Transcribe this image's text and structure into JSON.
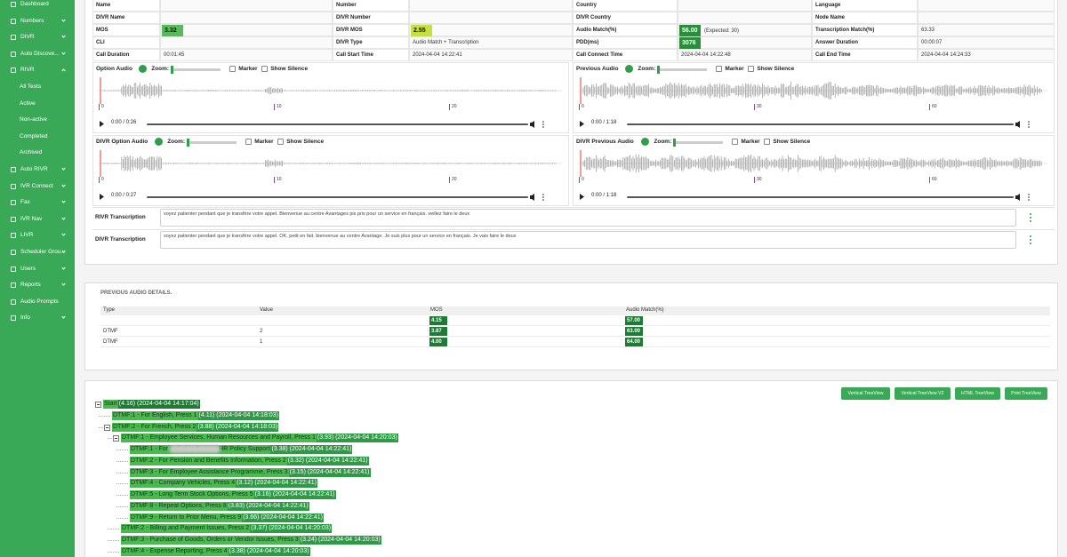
{
  "sidebar": {
    "items": [
      "Dashboard",
      "Numbers",
      "DIVR",
      "Auto Discove...",
      "RIVR",
      "All Tests",
      "Active",
      "Non-active",
      "Completed",
      "Archived",
      "Auto RIVR",
      "IVR Connect",
      "Fax",
      "IVR Nav",
      "LIVR",
      "Scheduler Grou...",
      "Users",
      "Reports",
      "Audio Prompts",
      "Info"
    ]
  },
  "details": {
    "rows": [
      [
        {
          "label": "Name"
        },
        {
          "label": "Number"
        },
        {
          "label": "Country"
        },
        {
          "label": "Language"
        }
      ],
      [
        {
          "label": "DIVR Name"
        },
        {
          "label": "DIVR Number"
        },
        {
          "label": "DIVR Country"
        },
        {
          "label": "Node Name"
        }
      ],
      [
        {
          "label": "MOS",
          "value": "3.32",
          "color": "#5cb85c"
        },
        {
          "label": "DIVR MOS",
          "value": "2.55",
          "color": "#c6df45"
        },
        {
          "label": "Audio Match(%)",
          "value": "56.00",
          "color": "#2e8b3e",
          "note": "(Expected: 30)"
        },
        {
          "label": "Transcription Match(%)",
          "value": "63.33"
        }
      ],
      [
        {
          "label": "CLI"
        },
        {
          "label": "DIVR Type",
          "value": "Audio Match + Transcription"
        },
        {
          "label": "PDD(ms)",
          "value": "3076",
          "color": "#2e8b3e"
        },
        {
          "label": "Answer Duration",
          "value": "00:00:07"
        }
      ],
      [
        {
          "label": "Call Duration",
          "value": "00:01:45"
        },
        {
          "label": "Call Start Time",
          "value": "2024-04-04 14:22:41"
        },
        {
          "label": "Call Connect Time",
          "value": "2024-04-04 14:22:48"
        },
        {
          "label": "Call End Time",
          "value": "2024-04-04 14:24:33"
        }
      ]
    ]
  },
  "audio": [
    {
      "label": "Option Audio",
      "zoom": "Zoom:",
      "marker": "Marker",
      "silence": "Show Silence",
      "time": "0:00 / 0:26",
      "ticks": [
        "0",
        "10",
        "20"
      ]
    },
    {
      "label": "Previous Audio",
      "zoom": "Zoom:",
      "marker": "Marker",
      "silence": "Show Silence",
      "time": "0:00 / 1:18",
      "ticks": [
        "0",
        "30",
        "60"
      ]
    },
    {
      "label": "DIVR Option Audio",
      "zoom": "Zoom:",
      "marker": "Marker",
      "silence": "Show Silence",
      "time": "0:00 / 0:27",
      "ticks": [
        "0",
        "10",
        "20"
      ]
    },
    {
      "label": "DIVR Previous Audio",
      "zoom": "Zoom:",
      "marker": "Marker",
      "silence": "Show Silence",
      "time": "0:00 / 1:18",
      "ticks": [
        "0",
        "30",
        "60"
      ]
    }
  ],
  "transcriptions": [
    {
      "label": "RIVR Transcription",
      "text": "voyez patienter pendant que je transfère votre appel. Bienvenue au centre Avantages pis pris pour un service en français. veillez faire le deux"
    },
    {
      "label": "DIVR Transcription",
      "text": "voyez patienter pendant que je transfère votre appel. OK, petit en fait. bienvenue au centre Avantage. Je suis plus pour un service en français. Je vais faire le deux"
    }
  ],
  "previous": {
    "title": "PREVIOUS AUDIO DETAILS.",
    "columns": [
      "Type",
      "Value",
      "MOS",
      "Audio Match(%)"
    ],
    "rows": [
      [
        null,
        null,
        "4.15",
        "57.00"
      ],
      [
        "DTMF",
        "2",
        "3.87",
        "63.00"
      ],
      [
        "DTMF",
        "1",
        "4.00",
        "64.00"
      ]
    ]
  },
  "buttons": [
    "Vertical TreeView",
    "Vertical TreeView V2",
    "HTML TreeView",
    "Print TreeView"
  ],
  "tree": {
    "label": "Start",
    "info": "(4.16) (2024-04-04 14:17:04)",
    "children": [
      {
        "label": "DTMF:1 - For English, Press 1",
        "info": "(4.11) (2024-04-04 14:18:03)"
      },
      {
        "label": "DTMF:2 - For French, Press 2",
        "info": "(3.88) (2024-04-04 14:18:03)",
        "children": [
          {
            "label": "DTMF:1 - Employee Services, Human Resources and Payroll, Press 1",
            "info": "(3.93) (2024-04-04 14:20:03)",
            "children": [
              {
                "label": "DTMF:1 - For",
                "label_rest": "including Fuse or HR Policy Support",
                "info": "(3.38) (2024-04-04 14:22:41)"
              },
              {
                "label": "DTMF:2 - For Pension and Benefits Information, Press 2",
                "info": "(3.32) (2024-04-04 14:22:41)"
              },
              {
                "label": "DTMF:3 - For Employee Assistance Programme, Press 3",
                "info": "(3.15) (2024-04-04 14:22:41)"
              },
              {
                "label": "DTMF:4 - Company Vehicles, Press 4",
                "info": "(3.12) (2024-04-04 14:22:41)"
              },
              {
                "label": "DTMF:5 - Long Term Stock Options, Press 5",
                "info": "(3.16) (2024-04-04 14:22:41)"
              },
              {
                "label": "DTMF:8 - Repeat Options, Press 8",
                "info": "(3.83) (2024-04-04 14:22:41)"
              },
              {
                "label": "DTMF:9 - Return to Prior Menu, Press 9",
                "info": "(3.66) (2024-04-04 14:22:41)"
              }
            ]
          },
          {
            "label": "DTMF:2 - Billing and Payment Issues, Press 2",
            "info": "(3.37) (2024-04-04 14:20:03)"
          },
          {
            "label": "DTMF:3 - Purchase of Goods, Orders or Vendor Issues, Press 3",
            "info": "(3.24) (2024-04-04 14:20:03)"
          },
          {
            "label": "DTMF:4 - Expense Reporting, Press 4",
            "info": "(3.38) (2024-04-04 14:20:03)"
          }
        ]
      }
    ]
  }
}
